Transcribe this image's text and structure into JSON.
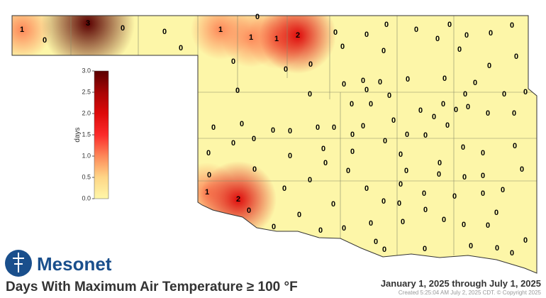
{
  "title": "Days With Maximum Air Temperature ≥ 100 °F",
  "date_range": "January 1, 2025 through July 1, 2025",
  "created": "Created 5:25:04 AM July 2, 2025 CDT. © Copyright 2025",
  "logo_text": "Mesonet",
  "colorbar": {
    "label": "days",
    "range": [
      0,
      3
    ],
    "ticks": [
      {
        "value": 0,
        "label": "0.0"
      },
      {
        "value": 0.5,
        "label": "0.5"
      },
      {
        "value": 1,
        "label": "1.0"
      },
      {
        "value": 1.5,
        "label": "1.5"
      },
      {
        "value": 2,
        "label": "2.0"
      },
      {
        "value": 2.5,
        "label": "2.5"
      },
      {
        "value": 3,
        "label": "3.0"
      }
    ]
  },
  "stations": [
    1,
    0,
    3,
    0,
    0,
    0,
    1,
    0,
    1,
    1,
    2,
    0,
    0,
    0,
    0,
    0,
    0,
    0,
    0,
    0,
    0,
    0,
    0,
    0,
    0,
    0,
    0,
    0,
    0,
    0,
    0,
    0,
    0,
    0,
    0,
    0,
    0,
    0,
    0,
    0,
    0,
    0,
    0,
    0,
    0,
    0,
    0,
    0,
    0,
    0,
    0,
    0,
    0,
    0,
    0,
    0,
    0,
    0,
    0,
    0,
    0,
    0,
    0,
    0,
    0,
    0,
    0,
    0,
    0,
    0,
    0,
    0,
    0,
    0,
    0,
    0,
    0,
    0,
    0,
    0,
    0,
    0,
    0,
    0,
    0,
    1,
    2,
    0,
    0,
    0,
    0,
    0,
    0,
    0,
    0,
    0,
    0,
    0,
    0,
    0,
    0,
    0,
    0,
    0,
    0,
    0,
    0,
    0,
    0,
    0,
    0,
    0,
    0,
    0,
    0
  ]
}
